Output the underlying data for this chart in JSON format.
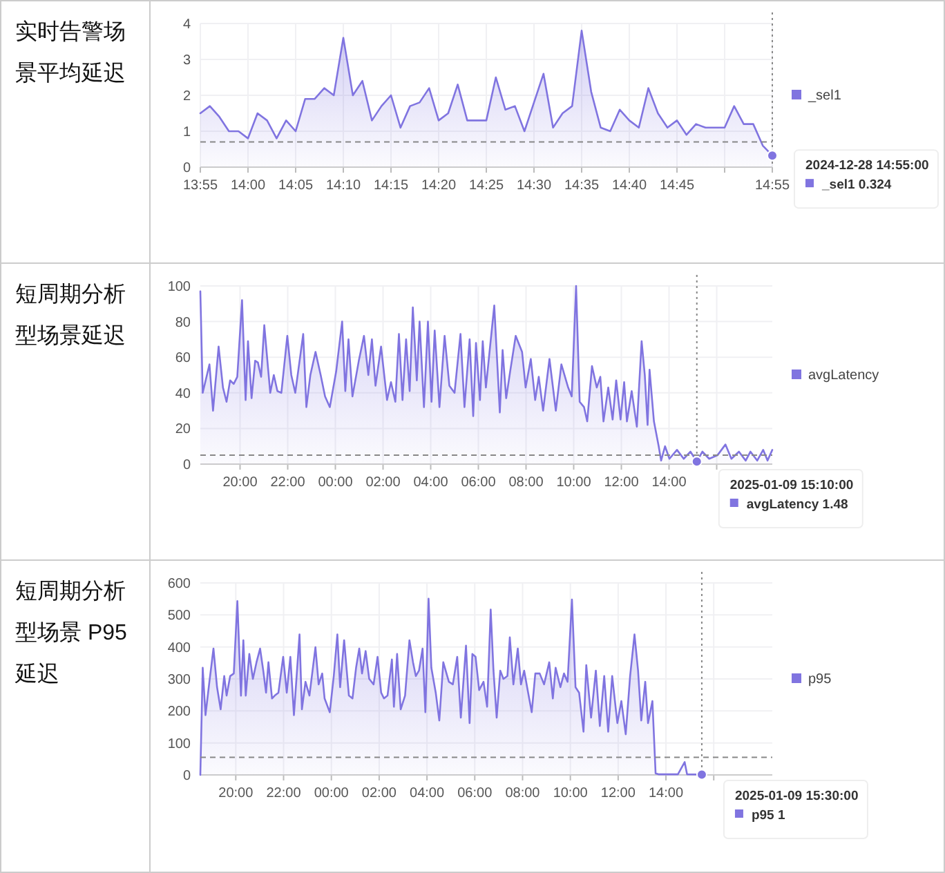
{
  "chart_data": [
    {
      "type": "area",
      "title": "实时告警场景平均延迟",
      "x": [
        "2024-12-28T13:55",
        "2024-12-28T13:56",
        "2024-12-28T13:57",
        "2024-12-28T13:58",
        "2024-12-28T13:59",
        "2024-12-28T14:00",
        "2024-12-28T14:01",
        "2024-12-28T14:02",
        "2024-12-28T14:03",
        "2024-12-28T14:04",
        "2024-12-28T14:05",
        "2024-12-28T14:06",
        "2024-12-28T14:07",
        "2024-12-28T14:08",
        "2024-12-28T14:09",
        "2024-12-28T14:10",
        "2024-12-28T14:11",
        "2024-12-28T14:12",
        "2024-12-28T14:13",
        "2024-12-28T14:14",
        "2024-12-28T14:15",
        "2024-12-28T14:16",
        "2024-12-28T14:17",
        "2024-12-28T14:18",
        "2024-12-28T14:19",
        "2024-12-28T14:20",
        "2024-12-28T14:21",
        "2024-12-28T14:22",
        "2024-12-28T14:23",
        "2024-12-28T14:24",
        "2024-12-28T14:25",
        "2024-12-28T14:26",
        "2024-12-28T14:27",
        "2024-12-28T14:28",
        "2024-12-28T14:29",
        "2024-12-28T14:30",
        "2024-12-28T14:31",
        "2024-12-28T14:32",
        "2024-12-28T14:33",
        "2024-12-28T14:34",
        "2024-12-28T14:35",
        "2024-12-28T14:36",
        "2024-12-28T14:37",
        "2024-12-28T14:38",
        "2024-12-28T14:39",
        "2024-12-28T14:40",
        "2024-12-28T14:41",
        "2024-12-28T14:42",
        "2024-12-28T14:43",
        "2024-12-28T14:44",
        "2024-12-28T14:45",
        "2024-12-28T14:46",
        "2024-12-28T14:47",
        "2024-12-28T14:48",
        "2024-12-28T14:49",
        "2024-12-28T14:50",
        "2024-12-28T14:51",
        "2024-12-28T14:52",
        "2024-12-28T14:53",
        "2024-12-28T14:54",
        "2024-12-28T14:55"
      ],
      "series": [
        {
          "name": "_sel1",
          "color": "#8074e0",
          "values": [
            1.5,
            1.7,
            1.4,
            1.0,
            1.0,
            0.8,
            1.5,
            1.3,
            0.8,
            1.3,
            1.0,
            1.9,
            1.9,
            2.2,
            2.0,
            3.6,
            2.0,
            2.4,
            1.3,
            1.7,
            2.0,
            1.1,
            1.7,
            1.8,
            2.2,
            1.3,
            1.5,
            2.3,
            1.3,
            1.3,
            1.3,
            2.5,
            1.6,
            1.7,
            1.0,
            1.8,
            2.6,
            1.1,
            1.5,
            1.7,
            3.8,
            2.1,
            1.1,
            1.0,
            1.6,
            1.3,
            1.1,
            2.2,
            1.5,
            1.1,
            1.3,
            0.9,
            1.2,
            1.1,
            1.1,
            1.1,
            1.7,
            1.2,
            1.2,
            0.6,
            0.324
          ]
        }
      ],
      "xlim": [
        "2024-12-28T13:55",
        "2024-12-28T14:55"
      ],
      "xticks": [
        {
          "value": "2024-12-28T13:55",
          "label": "13:55"
        },
        {
          "value": "2024-12-28T14:00",
          "label": "14:00"
        },
        {
          "value": "2024-12-28T14:05",
          "label": "14:05"
        },
        {
          "value": "2024-12-28T14:10",
          "label": "14:10"
        },
        {
          "value": "2024-12-28T14:15",
          "label": "14:15"
        },
        {
          "value": "2024-12-28T14:20",
          "label": "14:20"
        },
        {
          "value": "2024-12-28T14:25",
          "label": "14:25"
        },
        {
          "value": "2024-12-28T14:30",
          "label": "14:30"
        },
        {
          "value": "2024-12-28T14:35",
          "label": "14:35"
        },
        {
          "value": "2024-12-28T14:40",
          "label": "14:40"
        },
        {
          "value": "2024-12-28T14:45",
          "label": "14:45"
        },
        {
          "value": "2024-12-28T14:50",
          "label": null
        },
        {
          "value": "2024-12-28T14:55",
          "label": "14:55"
        }
      ],
      "ylim": [
        0,
        4
      ],
      "yticks": [
        0,
        1,
        2,
        3,
        4
      ],
      "grid": true,
      "legend": "right",
      "ref_lines": [
        {
          "axis": "y",
          "value": 0.7,
          "line_style": "dashed"
        },
        {
          "axis": "x",
          "value": "2024-12-28T14:55",
          "line_style": "dotted"
        }
      ],
      "annotations": [
        {
          "text": "2024-12-28 14:55:00\n_sel1  0.324",
          "x": "2024-12-28T14:55",
          "y": 0.324
        }
      ]
    },
    {
      "type": "area",
      "title": "短周期分析型场景延迟",
      "x": [
        "2025-01-08T18:20",
        "2025-01-08T18:26",
        "2025-01-08T18:43",
        "2025-01-08T18:52",
        "2025-01-08T19:06",
        "2025-01-08T19:17",
        "2025-01-08T19:26",
        "2025-01-08T19:35",
        "2025-01-08T19:44",
        "2025-01-08T19:53",
        "2025-01-08T20:05",
        "2025-01-08T20:14",
        "2025-01-08T20:20",
        "2025-01-08T20:29",
        "2025-01-08T20:38",
        "2025-01-08T20:45",
        "2025-01-08T20:53",
        "2025-01-08T21:01",
        "2025-01-08T21:10",
        "2025-01-08T21:16",
        "2025-01-08T21:25",
        "2025-01-08T21:34",
        "2025-01-08T21:44",
        "2025-01-08T21:59",
        "2025-01-08T22:09",
        "2025-01-08T22:19",
        "2025-01-08T22:39",
        "2025-01-08T22:47",
        "2025-01-08T22:57",
        "2025-01-08T23:10",
        "2025-01-08T23:23",
        "2025-01-08T23:34",
        "2025-01-08T23:46",
        "2025-01-09T00:02",
        "2025-01-09T00:17",
        "2025-01-09T00:25",
        "2025-01-09T00:33",
        "2025-01-09T00:43",
        "2025-01-09T00:59",
        "2025-01-09T01:12",
        "2025-01-09T01:23",
        "2025-01-09T01:32",
        "2025-01-09T01:41",
        "2025-01-09T01:55",
        "2025-01-09T02:10",
        "2025-01-09T02:20",
        "2025-01-09T02:31",
        "2025-01-09T02:40",
        "2025-01-09T02:49",
        "2025-01-09T02:58",
        "2025-01-09T03:07",
        "2025-01-09T03:15",
        "2025-01-09T03:25",
        "2025-01-09T03:32",
        "2025-01-09T03:43",
        "2025-01-09T03:53",
        "2025-01-09T04:02",
        "2025-01-09T04:10",
        "2025-01-09T04:22",
        "2025-01-09T04:35",
        "2025-01-09T04:47",
        "2025-01-09T05:00",
        "2025-01-09T05:15",
        "2025-01-09T05:25",
        "2025-01-09T05:38",
        "2025-01-09T05:47",
        "2025-01-09T05:54",
        "2025-01-09T06:04",
        "2025-01-09T06:11",
        "2025-01-09T06:19",
        "2025-01-09T06:40",
        "2025-01-09T06:54",
        "2025-01-09T07:01",
        "2025-01-09T07:10",
        "2025-01-09T07:20",
        "2025-01-09T07:34",
        "2025-01-09T07:50",
        "2025-01-09T07:59",
        "2025-01-09T08:12",
        "2025-01-09T08:23",
        "2025-01-09T08:32",
        "2025-01-09T08:43",
        "2025-01-09T08:59",
        "2025-01-09T09:15",
        "2025-01-09T09:29",
        "2025-01-09T09:46",
        "2025-01-09T09:55",
        "2025-01-09T10:06",
        "2025-01-09T10:15",
        "2025-01-09T10:26",
        "2025-01-09T10:34",
        "2025-01-09T10:46",
        "2025-01-09T10:58",
        "2025-01-09T11:07",
        "2025-01-09T11:15",
        "2025-01-09T11:27",
        "2025-01-09T11:38",
        "2025-01-09T11:47",
        "2025-01-09T11:58",
        "2025-01-09T12:07",
        "2025-01-09T12:14",
        "2025-01-09T12:26",
        "2025-01-09T12:39",
        "2025-01-09T12:51",
        "2025-01-09T12:59",
        "2025-01-09T13:06",
        "2025-01-09T13:11",
        "2025-01-09T13:22",
        "2025-01-09T13:34",
        "2025-01-09T13:40",
        "2025-01-09T13:50",
        "2025-01-09T14:01",
        "2025-01-09T14:20",
        "2025-01-09T14:37",
        "2025-01-09T14:54",
        "2025-01-09T15:10",
        "2025-01-09T15:24",
        "2025-01-09T15:41",
        "2025-01-09T16:02",
        "2025-01-09T16:22",
        "2025-01-09T16:37",
        "2025-01-09T16:56",
        "2025-01-09T17:13",
        "2025-01-09T17:25",
        "2025-01-09T17:42",
        "2025-01-09T17:57",
        "2025-01-09T18:08",
        "2025-01-09T18:20"
      ],
      "series": [
        {
          "name": "avgLatency",
          "color": "#8074e0",
          "values": [
            97,
            40,
            56,
            30,
            66,
            43,
            35,
            47,
            45,
            49,
            92,
            36,
            69,
            37,
            58,
            57,
            49,
            78,
            55,
            40,
            50,
            41,
            40,
            72,
            50,
            40,
            73,
            32,
            50,
            63,
            50,
            38,
            32,
            52,
            80,
            41,
            70,
            38,
            58,
            72,
            50,
            70,
            44,
            66,
            36,
            46,
            35,
            73,
            36,
            70,
            41,
            88,
            47,
            80,
            32,
            80,
            35,
            75,
            32,
            72,
            44,
            40,
            73,
            32,
            70,
            27,
            68,
            36,
            69,
            43,
            89,
            29,
            64,
            37,
            52,
            72,
            63,
            43,
            59,
            36,
            49,
            30,
            59,
            30,
            56,
            43,
            38,
            100,
            35,
            32,
            24,
            55,
            43,
            49,
            24,
            43,
            25,
            47,
            25,
            46,
            24,
            41,
            21,
            69,
            50,
            22,
            53,
            24,
            10,
            2,
            10,
            3,
            8,
            3,
            7,
            1.48,
            7,
            3,
            5,
            11,
            3,
            7,
            2,
            7,
            2,
            8,
            2,
            8
          ]
        }
      ],
      "xlim": [
        "2025-01-08T18:20",
        "2025-01-09T18:20"
      ],
      "xticks": [
        {
          "value": "2025-01-08T20:00",
          "label": "20:00"
        },
        {
          "value": "2025-01-08T22:00",
          "label": "22:00"
        },
        {
          "value": "2025-01-09T00:00",
          "label": "00:00"
        },
        {
          "value": "2025-01-09T02:00",
          "label": "02:00"
        },
        {
          "value": "2025-01-09T04:00",
          "label": "04:00"
        },
        {
          "value": "2025-01-09T06:00",
          "label": "06:00"
        },
        {
          "value": "2025-01-09T08:00",
          "label": "08:00"
        },
        {
          "value": "2025-01-09T10:00",
          "label": "10:00"
        },
        {
          "value": "2025-01-09T12:00",
          "label": "12:00"
        },
        {
          "value": "2025-01-09T14:00",
          "label": "14:00"
        },
        {
          "value": "2025-01-09T16:00",
          "label": null
        }
      ],
      "ylim": [
        0,
        100
      ],
      "yticks": [
        0,
        20,
        40,
        60,
        80,
        100
      ],
      "grid": true,
      "legend": "right",
      "ref_lines": [
        {
          "axis": "y",
          "value": 5,
          "line_style": "dashed"
        },
        {
          "axis": "x",
          "value": "2025-01-09T15:10",
          "line_style": "dotted"
        }
      ],
      "annotations": [
        {
          "text": "2025-01-09 15:10:00\navgLatency  1.48",
          "x": "2025-01-09T15:10",
          "y": 1.48
        }
      ]
    },
    {
      "type": "area",
      "title": "短周期分析型场景 P95 延迟",
      "x": [
        "2025-01-08T18:31",
        "2025-01-08T18:37",
        "2025-01-08T18:44",
        "2025-01-08T18:53",
        "2025-01-08T19:04",
        "2025-01-08T19:13",
        "2025-01-08T19:22",
        "2025-01-08T19:31",
        "2025-01-08T19:37",
        "2025-01-08T19:46",
        "2025-01-08T19:55",
        "2025-01-08T20:04",
        "2025-01-08T20:13",
        "2025-01-08T20:19",
        "2025-01-08T20:25",
        "2025-01-08T20:34",
        "2025-01-08T20:43",
        "2025-01-08T20:52",
        "2025-01-08T21:01",
        "2025-01-08T21:09",
        "2025-01-08T21:16",
        "2025-01-08T21:22",
        "2025-01-08T21:31",
        "2025-01-08T21:38",
        "2025-01-08T21:47",
        "2025-01-08T21:59",
        "2025-01-08T22:08",
        "2025-01-08T22:17",
        "2025-01-08T22:26",
        "2025-01-08T22:40",
        "2025-01-08T22:46",
        "2025-01-08T22:55",
        "2025-01-08T23:05",
        "2025-01-08T23:20",
        "2025-01-08T23:28",
        "2025-01-08T23:37",
        "2025-01-08T23:43",
        "2025-01-08T23:56",
        "2025-01-09T00:06",
        "2025-01-09T00:15",
        "2025-01-09T00:22",
        "2025-01-09T00:32",
        "2025-01-09T00:44",
        "2025-01-09T00:53",
        "2025-01-09T01:02",
        "2025-01-09T01:10",
        "2025-01-09T01:17",
        "2025-01-09T01:26",
        "2025-01-09T01:35",
        "2025-01-09T01:46",
        "2025-01-09T01:56",
        "2025-01-09T02:05",
        "2025-01-09T02:12",
        "2025-01-09T02:21",
        "2025-01-09T02:32",
        "2025-01-09T02:37",
        "2025-01-09T02:45",
        "2025-01-09T02:54",
        "2025-01-09T03:05",
        "2025-01-09T03:16",
        "2025-01-09T03:25",
        "2025-01-09T03:32",
        "2025-01-09T03:40",
        "2025-01-09T03:49",
        "2025-01-09T03:56",
        "2025-01-09T04:04",
        "2025-01-09T04:11",
        "2025-01-09T04:22",
        "2025-01-09T04:31",
        "2025-01-09T04:41",
        "2025-01-09T04:55",
        "2025-01-09T05:05",
        "2025-01-09T05:16",
        "2025-01-09T05:25",
        "2025-01-09T05:38",
        "2025-01-09T05:47",
        "2025-01-09T05:54",
        "2025-01-09T06:02",
        "2025-01-09T06:11",
        "2025-01-09T06:22",
        "2025-01-09T06:31",
        "2025-01-09T06:40",
        "2025-01-09T06:47",
        "2025-01-09T06:55",
        "2025-01-09T07:04",
        "2025-01-09T07:12",
        "2025-01-09T07:22",
        "2025-01-09T07:28",
        "2025-01-09T07:37",
        "2025-01-09T07:48",
        "2025-01-09T07:56",
        "2025-01-09T08:04",
        "2025-01-09T08:14",
        "2025-01-09T08:23",
        "2025-01-09T08:32",
        "2025-01-09T08:43",
        "2025-01-09T08:54",
        "2025-01-09T09:07",
        "2025-01-09T09:16",
        "2025-01-09T09:23",
        "2025-01-09T09:35",
        "2025-01-09T09:44",
        "2025-01-09T09:53",
        "2025-01-09T10:04",
        "2025-01-09T10:13",
        "2025-01-09T10:22",
        "2025-01-09T10:33",
        "2025-01-09T10:40",
        "2025-01-09T10:52",
        "2025-01-09T11:04",
        "2025-01-09T11:14",
        "2025-01-09T11:25",
        "2025-01-09T11:35",
        "2025-01-09T11:45",
        "2025-01-09T11:58",
        "2025-01-09T12:08",
        "2025-01-09T12:19",
        "2025-01-09T12:30",
        "2025-01-09T12:41",
        "2025-01-09T12:50",
        "2025-01-09T12:58",
        "2025-01-09T13:08",
        "2025-01-09T13:15",
        "2025-01-09T13:26",
        "2025-01-09T13:34",
        "2025-01-09T13:41",
        "2025-01-09T14:30",
        "2025-01-09T14:47",
        "2025-01-09T14:53",
        "2025-01-09T15:30",
        "2025-01-09T15:41"
      ],
      "series": [
        {
          "name": "p95",
          "color": "#8074e0",
          "values": [
            0,
            335,
            187,
            283,
            395,
            274,
            205,
            309,
            248,
            309,
            317,
            543,
            248,
            421,
            248,
            378,
            300,
            352,
            395,
            326,
            257,
            352,
            239,
            248,
            257,
            369,
            257,
            369,
            187,
            439,
            205,
            291,
            248,
            399,
            283,
            317,
            239,
            196,
            309,
            439,
            274,
            421,
            248,
            239,
            335,
            395,
            317,
            387,
            300,
            283,
            369,
            257,
            239,
            248,
            361,
            213,
            378,
            205,
            248,
            421,
            352,
            309,
            326,
            395,
            196,
            551,
            335,
            257,
            170,
            352,
            291,
            283,
            369,
            179,
            404,
            162,
            378,
            369,
            265,
            291,
            213,
            517,
            326,
            179,
            326,
            300,
            309,
            430,
            283,
            395,
            283,
            326,
            257,
            196,
            317,
            317,
            283,
            352,
            239,
            335,
            274,
            317,
            291,
            548,
            274,
            257,
            135,
            343,
            179,
            326,
            153,
            309,
            135,
            309,
            162,
            231,
            127,
            309,
            439,
            326,
            170,
            291,
            162,
            231,
            5,
            2,
            2,
            40,
            2,
            1,
            1
          ]
        }
      ],
      "xlim": [
        "2025-01-08T18:31",
        "2025-01-09T18:27"
      ],
      "xticks": [
        {
          "value": "2025-01-08T20:00",
          "label": "20:00"
        },
        {
          "value": "2025-01-08T22:00",
          "label": "22:00"
        },
        {
          "value": "2025-01-09T00:00",
          "label": "00:00"
        },
        {
          "value": "2025-01-09T02:00",
          "label": "02:00"
        },
        {
          "value": "2025-01-09T04:00",
          "label": "04:00"
        },
        {
          "value": "2025-01-09T06:00",
          "label": "06:00"
        },
        {
          "value": "2025-01-09T08:00",
          "label": "08:00"
        },
        {
          "value": "2025-01-09T10:00",
          "label": "10:00"
        },
        {
          "value": "2025-01-09T12:00",
          "label": "12:00"
        },
        {
          "value": "2025-01-09T14:00",
          "label": "14:00"
        },
        {
          "value": "2025-01-09T16:00",
          "label": null
        }
      ],
      "ylim": [
        0,
        600
      ],
      "yticks": [
        0,
        100,
        200,
        300,
        400,
        500,
        600
      ],
      "grid": true,
      "legend": "right",
      "ref_lines": [
        {
          "axis": "y",
          "value": 55,
          "line_style": "dashed"
        },
        {
          "axis": "x",
          "value": "2025-01-09T15:30",
          "line_style": "dotted"
        }
      ],
      "annotations": [
        {
          "text": "2025-01-09 15:30:00\np95  1",
          "x": "2025-01-09T15:30",
          "y": 1
        }
      ]
    }
  ]
}
